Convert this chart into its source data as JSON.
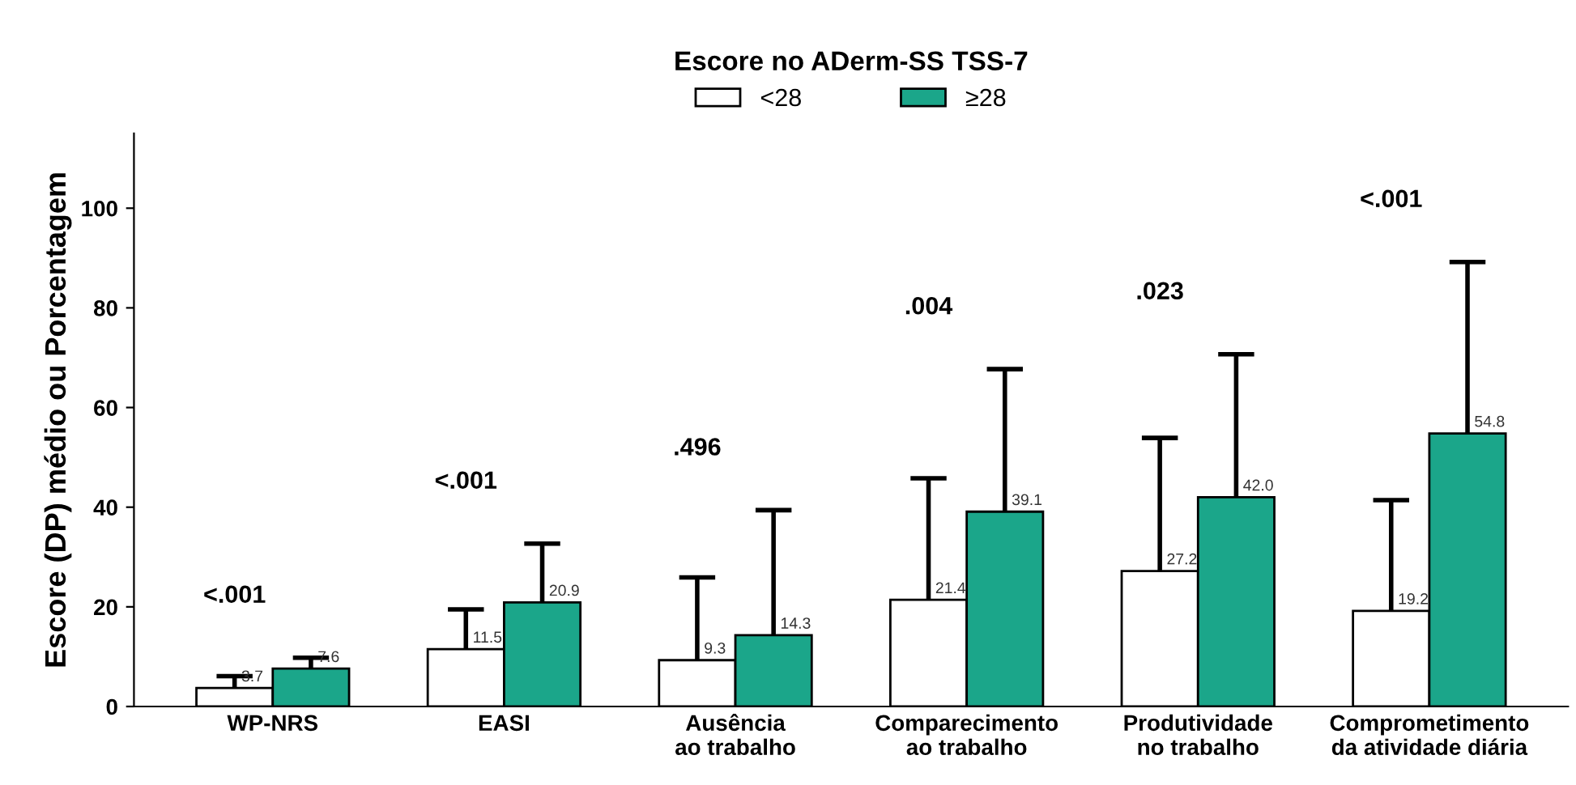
{
  "chart_data": {
    "type": "bar",
    "legend_title": "Escore no ADerm-SS TSS-7",
    "ylabel": "Escore (DP) médio ou Porcentagem",
    "categories": [
      "WP-NRS",
      "EASI",
      "Ausência\nao trabalho",
      "Comparecimento\nao trabalho",
      "Produtividade\nno trabalho",
      "Comprometimento\nda atividade diária"
    ],
    "series": [
      {
        "name": "<28",
        "color": "#ffffff",
        "values": [
          3.7,
          11.5,
          9.3,
          21.4,
          27.2,
          19.2
        ],
        "errors": [
          [
            3.7,
            6.1
          ],
          [
            11.5,
            19.5
          ],
          [
            9.3,
            25.9
          ],
          [
            21.4,
            45.8
          ],
          [
            27.2,
            53.9
          ],
          [
            19.2,
            41.4
          ]
        ]
      },
      {
        "name": "≥28",
        "color": "#1ba68a",
        "values": [
          7.6,
          20.9,
          14.3,
          39.1,
          42.0,
          54.8
        ],
        "errors": [
          [
            7.6,
            9.8
          ],
          [
            20.9,
            32.7
          ],
          [
            14.3,
            39.4
          ],
          [
            39.1,
            67.7
          ],
          [
            42.0,
            70.7
          ],
          [
            54.8,
            89.2
          ]
        ],
        "value_labels": [
          "7.6",
          "20.9",
          "14.3",
          "39.1",
          "42.0",
          "54.8"
        ]
      }
    ],
    "data_labels": true,
    "annotations": [
      "<.001",
      "<.001",
      ".496",
      ".004",
      ".023",
      "<.001"
    ],
    "ylim": [
      0,
      115
    ],
    "yticks": [
      0,
      20,
      40,
      60,
      80,
      100
    ],
    "grid": false,
    "legend": "top"
  }
}
